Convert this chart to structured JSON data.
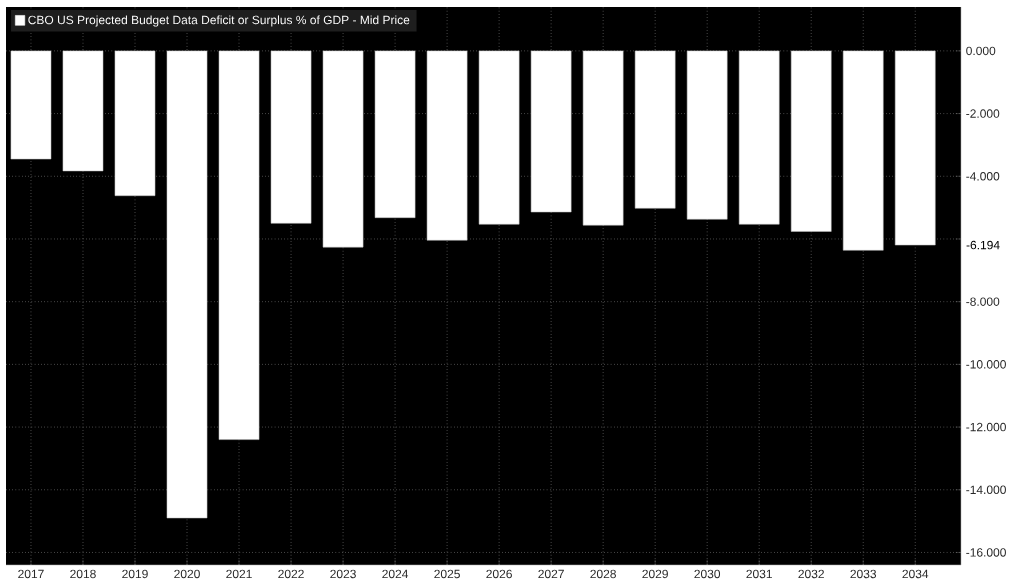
{
  "chart_data": {
    "type": "bar",
    "categories": [
      "2017",
      "2018",
      "2019",
      "2020",
      "2021",
      "2022",
      "2023",
      "2024",
      "2025",
      "2026",
      "2027",
      "2028",
      "2029",
      "2030",
      "2031",
      "2032",
      "2033",
      "2034"
    ],
    "series": [
      {
        "name": "CBO US Projected Budget Data Deficit or Surplus % of GDP - Mid Price",
        "color": "#ffffff",
        "values": [
          -3.45,
          -3.83,
          -4.62,
          -14.9,
          -12.4,
          -5.5,
          -6.26,
          -5.32,
          -6.04,
          -5.53,
          -5.14,
          -5.56,
          -5.02,
          -5.37,
          -5.53,
          -5.76,
          -6.36,
          -6.194
        ]
      }
    ],
    "annotations": [
      "-6.194"
    ],
    "ylim": [
      -16.4,
      1.4
    ],
    "yticks": [
      {
        "value": 0,
        "label": "0.000"
      },
      {
        "value": -2,
        "label": "-2.000"
      },
      {
        "value": -4,
        "label": "-4.000"
      },
      {
        "value": -6,
        "label": null
      },
      {
        "value": -8,
        "label": "-8.000"
      },
      {
        "value": -10,
        "label": "-10.000"
      },
      {
        "value": -12,
        "label": "-12.000"
      },
      {
        "value": -14,
        "label": "-14.000"
      },
      {
        "value": -16,
        "label": "-16.000"
      }
    ],
    "grid": true,
    "legend": "top left"
  }
}
